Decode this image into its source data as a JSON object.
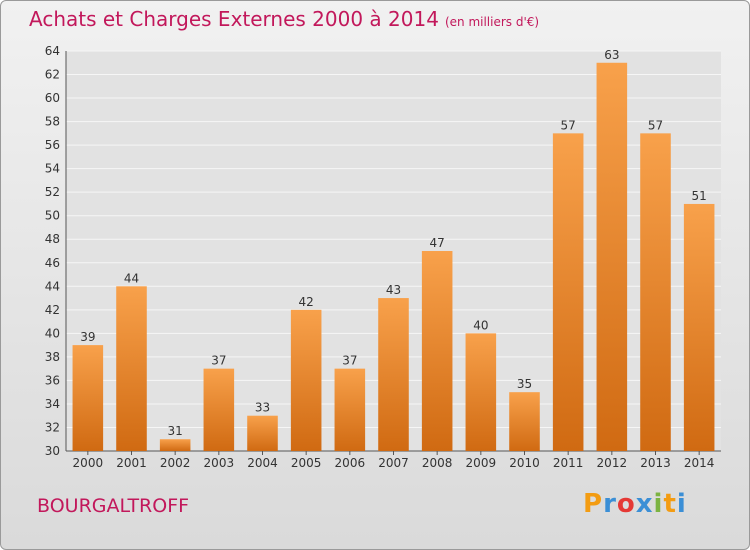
{
  "title": "Achats et Charges Externes 2000 à 2014",
  "subtitle": "(en milliers d'€)",
  "location": "BOURGALTROFF",
  "logo": {
    "text": "Proxiti",
    "colors": [
      "#f39c12",
      "#3b8fd6",
      "#e53935",
      "#3b8fd6",
      "#7cb342",
      "#f39c12",
      "#3b8fd6"
    ]
  },
  "colors": {
    "bar_top": "#f8a14b",
    "bar_bottom": "#d06a12",
    "title": "#c2185b"
  },
  "chart_data": {
    "type": "bar",
    "title": "Achats et Charges Externes 2000 à 2014",
    "categories": [
      "2000",
      "2001",
      "2002",
      "2003",
      "2004",
      "2005",
      "2006",
      "2007",
      "2008",
      "2009",
      "2010",
      "2011",
      "2012",
      "2013",
      "2014"
    ],
    "values": [
      39,
      44,
      31,
      37,
      33,
      42,
      37,
      43,
      47,
      40,
      35,
      57,
      63,
      57,
      51
    ],
    "ylim": [
      30,
      64
    ],
    "yticks": [
      30,
      32,
      34,
      36,
      38,
      40,
      42,
      44,
      46,
      48,
      50,
      52,
      54,
      56,
      58,
      60,
      62,
      64
    ],
    "grid": true,
    "xlabel": "",
    "ylabel": ""
  }
}
